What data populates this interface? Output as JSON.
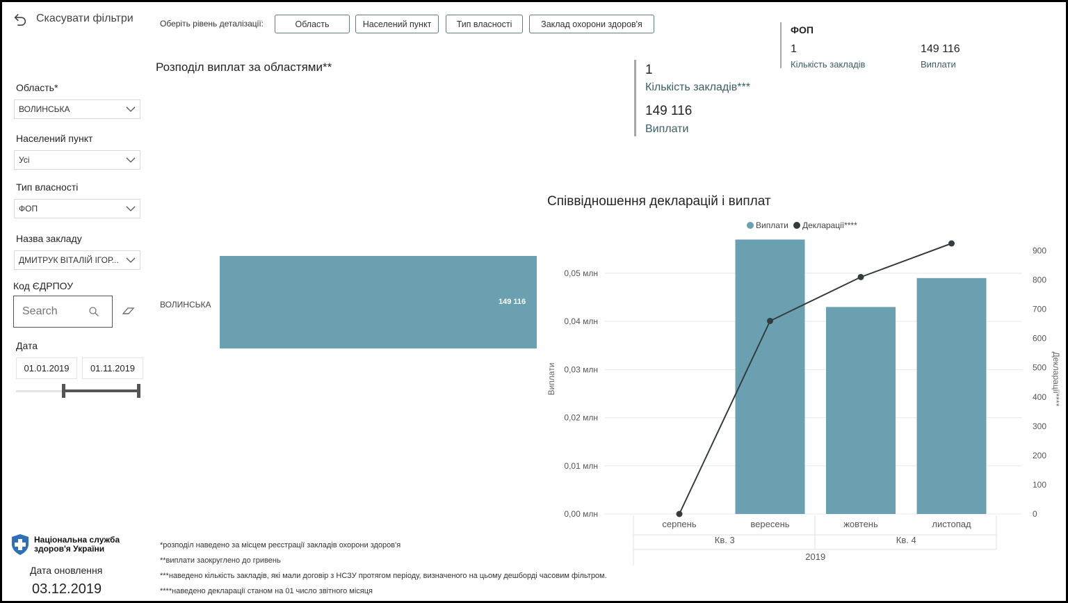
{
  "reset": {
    "label": "Скасувати фільтри"
  },
  "level": {
    "label": "Оберіть рівень деталізації:",
    "buttons": [
      "Область",
      "Населений пункт",
      "Тип власності",
      "Заклад охорони здоров'я"
    ]
  },
  "filters": {
    "region": {
      "label": "Область*",
      "value": "ВОЛИНСЬКА"
    },
    "settlement": {
      "label": "Населений пункт",
      "value": "Усі"
    },
    "ownership": {
      "label": "Тип власності",
      "value": "ФОП"
    },
    "facility": {
      "label": "Назва закладу",
      "value": "ДМИТРУК ВІТАЛІЙ ІГОР..."
    },
    "edrpou": {
      "label": "Код ЄДРПОУ",
      "placeholder": "Search"
    },
    "date": {
      "label": "Дата",
      "from": "01.01.2019",
      "to": "01.11.2019"
    }
  },
  "kpi": {
    "count_value": "1",
    "count_label": "Кількість закладів***",
    "pay_value": "149 116",
    "pay_label": "Виплати"
  },
  "fop": {
    "title": "ФОП",
    "count_value": "1",
    "count_label": "Кількість закладів",
    "pay_value": "149 116",
    "pay_label": "Виплати"
  },
  "footer": {
    "org": "Національна служба здоров'я України",
    "updated_label": "Дата оновлення",
    "updated_value": "03.12.2019",
    "notes": [
      "*розподіл наведено за місцем реєстрації закладів охорони здоров'я",
      "**виплати заокруглено до гривень",
      "***наведено кількість закладів, які мали договір з НСЗУ протягом періоду, визначеного на цьому дешборді часовим фільтром.",
      "****наведено декларації станом на 01 число звітного місяця"
    ]
  },
  "colors": {
    "bar": "#6aa0b0",
    "line": "#333d3f",
    "accent": "#3a5f6a"
  },
  "chart_data": [
    {
      "type": "bar",
      "title": "Розподіл виплат за областями**",
      "categories": [
        "ВОЛИНСЬКА"
      ],
      "values": [
        149116
      ],
      "data_labels": [
        "149 116"
      ]
    },
    {
      "type": "bar+line",
      "title": "Співвідношення декларацій і виплат",
      "legend": [
        "Виплати",
        "Декларації****"
      ],
      "legend_position": "top-center",
      "categories": [
        "серпень",
        "вересень",
        "жовтень",
        "листопад"
      ],
      "quarters": [
        {
          "label": "Кв. 3",
          "span": 2
        },
        {
          "label": "Кв. 4",
          "span": 2
        }
      ],
      "year": "2019",
      "ylabel_left": "Виплати",
      "ylabel_right": "Декларації****",
      "yticks_left": [
        "0,00 млн",
        "0,01 млн",
        "0,02 млн",
        "0,03 млн",
        "0,04 млн",
        "0,05 млн"
      ],
      "yticks_right": [
        "0",
        "100",
        "200",
        "300",
        "400",
        "500",
        "600",
        "700",
        "800",
        "900"
      ],
      "ylim_left": [
        0,
        0.0562
      ],
      "ylim_right": [
        0,
        925
      ],
      "series": [
        {
          "name": "Виплати",
          "kind": "bar",
          "values": [
            0,
            0.057,
            0.043,
            0.049
          ]
        },
        {
          "name": "Декларації****",
          "kind": "line",
          "values": [
            0,
            660,
            810,
            925
          ]
        }
      ]
    }
  ]
}
